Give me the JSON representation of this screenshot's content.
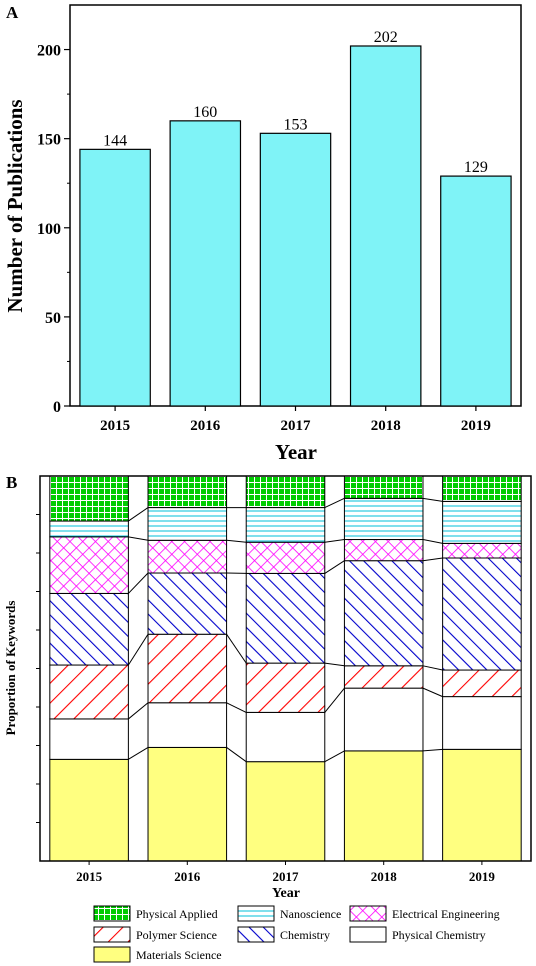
{
  "chart_data": [
    {
      "panel_label": "A",
      "type": "bar",
      "categories": [
        "2015",
        "2016",
        "2017",
        "2018",
        "2019"
      ],
      "values": [
        144,
        160,
        153,
        202,
        129
      ],
      "data_labels": [
        "144",
        "160",
        "153",
        "202",
        "129"
      ],
      "xlabel": "Year",
      "ylabel": "Number of Publications",
      "ylim": [
        0,
        225
      ],
      "yticks": [
        0,
        50,
        100,
        150,
        200
      ],
      "ytick_labels": [
        "0",
        "50",
        "100",
        "150",
        "200"
      ],
      "bar_color": "#7ff3f7",
      "grid": false
    },
    {
      "panel_label": "B",
      "type": "bar",
      "stacked": true,
      "categories": [
        "2015",
        "2016",
        "2017",
        "2018",
        "2019"
      ],
      "xlabel": "Year",
      "ylabel": "Proportion of Keywords",
      "ylim": [
        0,
        1
      ],
      "grid": false,
      "series": [
        {
          "name": "Materials Science",
          "color": "#ffff80",
          "pattern": "solid",
          "values": [
            0.264,
            0.295,
            0.258,
            0.286,
            0.29
          ]
        },
        {
          "name": "Physical Chemistry",
          "color": "#ffffff",
          "pattern": "solid",
          "values": [
            0.105,
            0.116,
            0.128,
            0.163,
            0.137
          ]
        },
        {
          "name": "Polymer Science",
          "color": "#ff0000",
          "pattern": "diagonal",
          "values": [
            0.14,
            0.178,
            0.128,
            0.058,
            0.069
          ]
        },
        {
          "name": "Chemistry",
          "color": "#0000cc",
          "pattern": "back-diagonal",
          "values": [
            0.186,
            0.159,
            0.233,
            0.273,
            0.291
          ]
        },
        {
          "name": "Electrical Engineering",
          "color": "#ff00ff",
          "pattern": "crosshatch",
          "values": [
            0.147,
            0.085,
            0.081,
            0.055,
            0.038
          ]
        },
        {
          "name": "Nanoscience",
          "color": "#00bfd8",
          "pattern": "horizontal",
          "values": [
            0.041,
            0.085,
            0.09,
            0.107,
            0.109
          ]
        },
        {
          "name": "Physical Applied",
          "color": "#00cc00",
          "pattern": "grid",
          "values": [
            0.117,
            0.082,
            0.082,
            0.058,
            0.066
          ]
        }
      ],
      "legend": {
        "placement": "bottom",
        "order": [
          "Physical Applied",
          "Nanoscience",
          "Electrical Engineering",
          "Polymer Science",
          "Chemistry",
          "Physical Chemistry",
          "Materials Science"
        ]
      }
    }
  ]
}
